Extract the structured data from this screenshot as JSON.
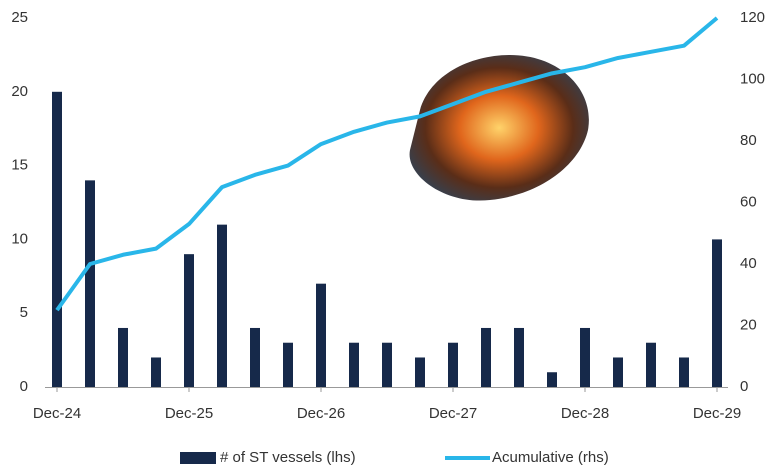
{
  "chart_data": {
    "type": "bar-line",
    "categories": [
      "Dec-24",
      null,
      null,
      null,
      "Dec-25",
      null,
      null,
      null,
      "Dec-26",
      null,
      null,
      null,
      "Dec-27",
      null,
      null,
      null,
      "Dec-28",
      null,
      null,
      null,
      "Dec-29"
    ],
    "series": [
      {
        "name": "# of ST vessels (lhs)",
        "type": "bar",
        "color": "#16294a",
        "axis": "y",
        "values": [
          20,
          14,
          4,
          2,
          9,
          11,
          4,
          3,
          7,
          3,
          3,
          2,
          3,
          4,
          4,
          1,
          4,
          2,
          3,
          2,
          10
        ]
      },
      {
        "name": "Acumulative (rhs)",
        "type": "line",
        "color": "#29b6e9",
        "axis": "y2",
        "values": [
          25,
          40,
          43,
          45,
          53,
          65,
          69,
          72,
          79,
          83,
          86,
          88,
          92,
          96,
          99,
          102,
          104,
          107,
          109,
          111,
          120
        ]
      }
    ],
    "ylim": [
      0,
      25
    ],
    "yticks": [
      0,
      5,
      10,
      15,
      20,
      25
    ],
    "y2lim": [
      0,
      120
    ],
    "y2ticks": [
      0,
      20,
      40,
      60,
      80,
      100,
      120
    ],
    "legend": "bottom",
    "grid": false
  }
}
